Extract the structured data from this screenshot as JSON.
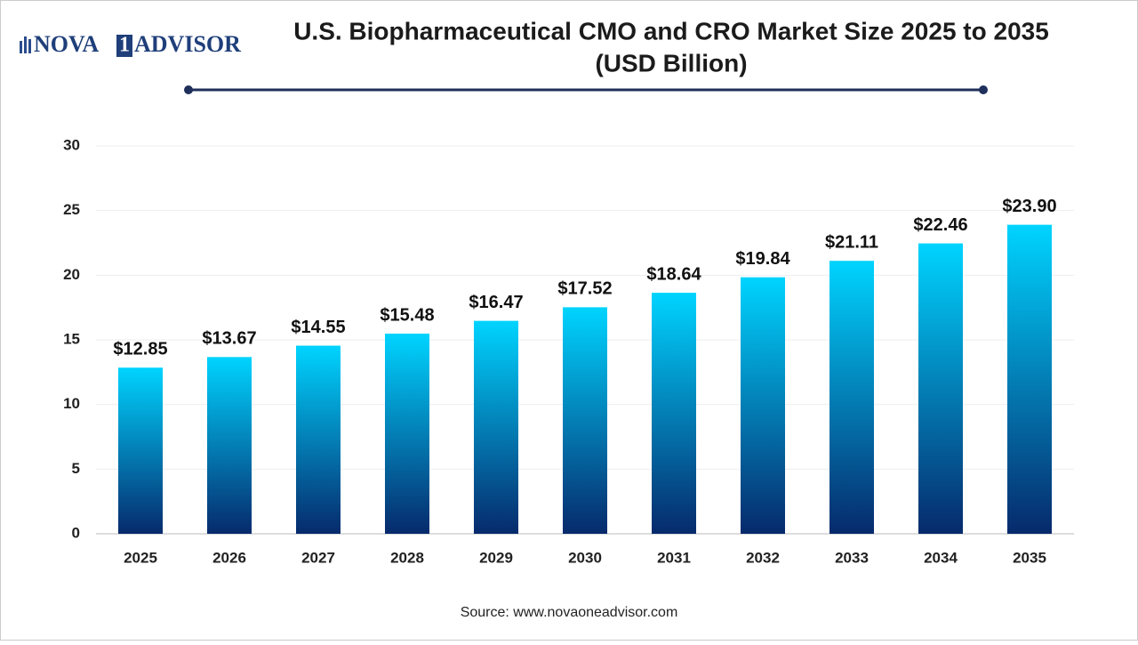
{
  "chart_data": {
    "type": "bar",
    "title": "U.S. Biopharmaceutical CMO and CRO Market Size 2025 to 2035",
    "subtitle": "(USD Billion)",
    "brand": [
      "NOVA",
      "1",
      "ADVISOR"
    ],
    "source": "Source: www.novaoneadvisor.com",
    "categories": [
      "2025",
      "2026",
      "2027",
      "2028",
      "2029",
      "2030",
      "2031",
      "2032",
      "2033",
      "2034",
      "2035"
    ],
    "values": [
      12.85,
      13.67,
      14.55,
      15.48,
      16.47,
      17.52,
      18.64,
      19.84,
      21.11,
      22.46,
      23.9
    ],
    "value_labels": [
      "$12.85",
      "$13.67",
      "$14.55",
      "$15.48",
      "$16.47",
      "$17.52",
      "$18.64",
      "$19.84",
      "$21.11",
      "$22.46",
      "$23.90"
    ],
    "color": [
      "#00d4ff",
      "#062a6c"
    ],
    "ylim": [
      0,
      30
    ],
    "yticks": [
      0,
      5,
      10,
      15,
      20,
      25,
      30
    ],
    "grid": true
  }
}
